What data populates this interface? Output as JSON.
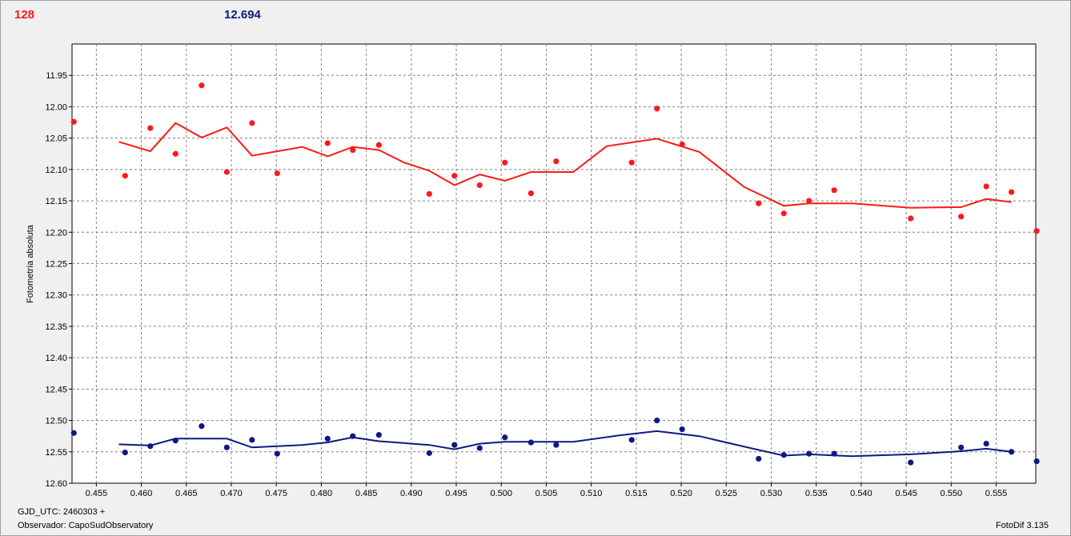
{
  "header": {
    "count": "128",
    "magnitude": "12.694"
  },
  "footer": {
    "gjd": "GJD_UTC: 2460303 +",
    "observer": "Observador: CapoSudObservatory",
    "version": "FotoDif 3.135"
  },
  "colors": {
    "series1": "#ff1a1a",
    "series2": "#0d1a80",
    "grid": "#808080",
    "background": "#f0f0f0"
  },
  "chart_data": {
    "type": "scatter",
    "ylabel": "Fotometría absoluta",
    "xlabel": "",
    "xlim": [
      0.4523,
      0.5594
    ],
    "ylim": [
      12.6,
      11.9
    ],
    "y_inverted": true,
    "grid": true,
    "x_ticks": [
      "0.455",
      "0.460",
      "0.465",
      "0.470",
      "0.475",
      "0.480",
      "0.485",
      "0.490",
      "0.495",
      "0.500",
      "0.505",
      "0.510",
      "0.515",
      "0.520",
      "0.525",
      "0.530",
      "0.535",
      "0.540",
      "0.545",
      "0.550",
      "0.555"
    ],
    "y_ticks": [
      "11.95",
      "12.00",
      "12.05",
      "12.10",
      "12.15",
      "12.20",
      "12.25",
      "12.30",
      "12.35",
      "12.40",
      "12.45",
      "12.50",
      "12.55",
      "12.60"
    ],
    "series": [
      {
        "color": "#ff1a1a",
        "points": [
          [
            0.4525,
            12.024
          ],
          [
            0.4582,
            12.11
          ],
          [
            0.461,
            12.034
          ],
          [
            0.4638,
            12.075
          ],
          [
            0.4667,
            11.966
          ],
          [
            0.4695,
            12.104
          ],
          [
            0.4723,
            12.026
          ],
          [
            0.4751,
            12.106
          ],
          [
            0.4807,
            12.058
          ],
          [
            0.4835,
            12.069
          ],
          [
            0.4864,
            12.061
          ],
          [
            0.492,
            12.139
          ],
          [
            0.4948,
            12.11
          ],
          [
            0.4976,
            12.125
          ],
          [
            0.5004,
            12.089
          ],
          [
            0.5033,
            12.138
          ],
          [
            0.5061,
            12.087
          ],
          [
            0.5145,
            12.089
          ],
          [
            0.5173,
            12.003
          ],
          [
            0.5201,
            12.06
          ],
          [
            0.5286,
            12.154
          ],
          [
            0.5314,
            12.17
          ],
          [
            0.5342,
            12.15
          ],
          [
            0.537,
            12.133
          ],
          [
            0.5455,
            12.178
          ],
          [
            0.5511,
            12.175
          ],
          [
            0.5539,
            12.127
          ],
          [
            0.5567,
            12.136
          ],
          [
            0.5595,
            12.198
          ]
        ],
        "trend": [
          [
            0.4575,
            12.056
          ],
          [
            0.461,
            12.071
          ],
          [
            0.4638,
            12.026
          ],
          [
            0.4667,
            12.049
          ],
          [
            0.4695,
            12.033
          ],
          [
            0.4723,
            12.078
          ],
          [
            0.4751,
            12.071
          ],
          [
            0.4779,
            12.064
          ],
          [
            0.4807,
            12.079
          ],
          [
            0.4835,
            12.064
          ],
          [
            0.4864,
            12.069
          ],
          [
            0.4892,
            12.089
          ],
          [
            0.492,
            12.102
          ],
          [
            0.4948,
            12.125
          ],
          [
            0.4976,
            12.108
          ],
          [
            0.5004,
            12.118
          ],
          [
            0.5033,
            12.104
          ],
          [
            0.5061,
            12.104
          ],
          [
            0.508,
            12.104
          ],
          [
            0.5117,
            12.063
          ],
          [
            0.5173,
            12.051
          ],
          [
            0.522,
            12.072
          ],
          [
            0.527,
            12.128
          ],
          [
            0.5314,
            12.158
          ],
          [
            0.5342,
            12.154
          ],
          [
            0.539,
            12.154
          ],
          [
            0.5455,
            12.161
          ],
          [
            0.5511,
            12.16
          ],
          [
            0.5539,
            12.147
          ],
          [
            0.5567,
            12.152
          ]
        ]
      },
      {
        "color": "#0d1a80",
        "points": [
          [
            0.4525,
            12.52
          ],
          [
            0.4582,
            12.551
          ],
          [
            0.461,
            12.541
          ],
          [
            0.4638,
            12.532
          ],
          [
            0.4667,
            12.509
          ],
          [
            0.4695,
            12.543
          ],
          [
            0.4723,
            12.531
          ],
          [
            0.4751,
            12.553
          ],
          [
            0.4807,
            12.529
          ],
          [
            0.4835,
            12.525
          ],
          [
            0.4864,
            12.523
          ],
          [
            0.492,
            12.552
          ],
          [
            0.4948,
            12.539
          ],
          [
            0.4976,
            12.544
          ],
          [
            0.5004,
            12.527
          ],
          [
            0.5033,
            12.535
          ],
          [
            0.5061,
            12.539
          ],
          [
            0.5145,
            12.531
          ],
          [
            0.5173,
            12.5
          ],
          [
            0.5201,
            12.514
          ],
          [
            0.5286,
            12.561
          ],
          [
            0.5314,
            12.555
          ],
          [
            0.5342,
            12.553
          ],
          [
            0.537,
            12.553
          ],
          [
            0.5455,
            12.567
          ],
          [
            0.5511,
            12.543
          ],
          [
            0.5539,
            12.537
          ],
          [
            0.5567,
            12.55
          ],
          [
            0.5595,
            12.565
          ]
        ],
        "trend": [
          [
            0.4575,
            12.538
          ],
          [
            0.461,
            12.54
          ],
          [
            0.4638,
            12.529
          ],
          [
            0.4667,
            12.529
          ],
          [
            0.4695,
            12.529
          ],
          [
            0.4723,
            12.543
          ],
          [
            0.4779,
            12.539
          ],
          [
            0.4807,
            12.535
          ],
          [
            0.4835,
            12.527
          ],
          [
            0.4864,
            12.533
          ],
          [
            0.492,
            12.539
          ],
          [
            0.4948,
            12.546
          ],
          [
            0.4976,
            12.537
          ],
          [
            0.5004,
            12.534
          ],
          [
            0.508,
            12.534
          ],
          [
            0.513,
            12.524
          ],
          [
            0.5173,
            12.517
          ],
          [
            0.522,
            12.525
          ],
          [
            0.528,
            12.545
          ],
          [
            0.5314,
            12.556
          ],
          [
            0.5342,
            12.554
          ],
          [
            0.539,
            12.557
          ],
          [
            0.5455,
            12.554
          ],
          [
            0.5511,
            12.549
          ],
          [
            0.5539,
            12.545
          ],
          [
            0.5567,
            12.55
          ]
        ]
      }
    ]
  }
}
